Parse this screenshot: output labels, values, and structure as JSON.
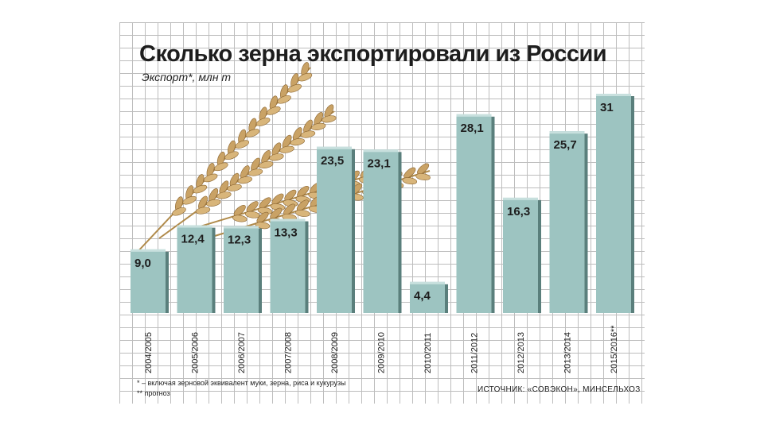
{
  "chart_data": {
    "type": "bar",
    "title": "Сколько зерна экспортировали из России",
    "subtitle": "Экспорт*, млн т",
    "categories": [
      "2004/2005",
      "2005/2006",
      "2006/2007",
      "2007/2008",
      "2008/2009",
      "2009/2010",
      "2010/2011",
      "2011/2012",
      "2012/2013",
      "2013/2014",
      "2015/2016**"
    ],
    "values": [
      9.0,
      12.4,
      12.3,
      13.3,
      23.5,
      23.1,
      4.4,
      28.1,
      16.3,
      25.7,
      31
    ],
    "value_labels": [
      "9,0",
      "12,4",
      "12,3",
      "13,3",
      "23,5",
      "23,1",
      "4,4",
      "28,1",
      "16,3",
      "25,7",
      "31"
    ],
    "ylim": [
      0,
      31
    ],
    "grid": true,
    "bar_color": "#9dc4c1"
  },
  "notes": {
    "footnote1": "* – включая зерновой эквивалент муки, зерна, риса и кукурузы",
    "footnote2": "** прогноз",
    "source": "ИСТОЧНИК: «СОВЭКОН», МИНСЕЛЬХОЗ"
  }
}
